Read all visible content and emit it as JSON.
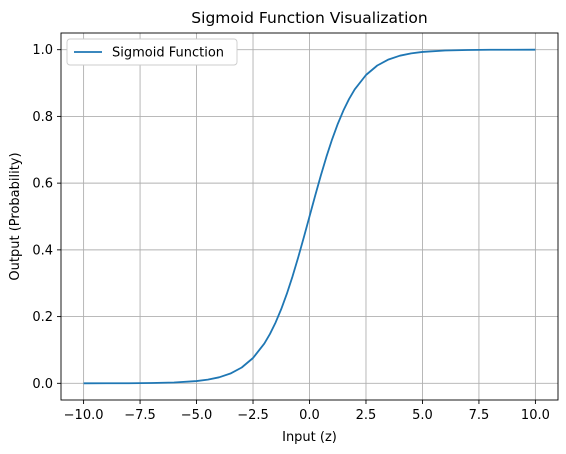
{
  "chart_data": {
    "type": "line",
    "title": "Sigmoid Function Visualization",
    "xlabel": "Input (z)",
    "ylabel": "Output (Probability)",
    "xlim": [
      -11.0,
      11.0
    ],
    "ylim": [
      -0.05,
      1.05
    ],
    "xticks": [
      -10.0,
      -7.5,
      -5.0,
      -2.5,
      0.0,
      2.5,
      5.0,
      7.5,
      10.0
    ],
    "xtick_labels": [
      "−10.0",
      "−7.5",
      "−5.0",
      "−2.5",
      "0.0",
      "2.5",
      "5.0",
      "7.5",
      "10.0"
    ],
    "yticks": [
      0.0,
      0.2,
      0.4,
      0.6,
      0.8,
      1.0
    ],
    "ytick_labels": [
      "0.0",
      "0.2",
      "0.4",
      "0.6",
      "0.8",
      "1.0"
    ],
    "grid": true,
    "legend_position": "top-left",
    "series": [
      {
        "name": "Sigmoid Function",
        "color": "#1f77b4",
        "x": [
          -10,
          -9,
          -8,
          -7,
          -6,
          -5,
          -4.5,
          -4,
          -3.5,
          -3,
          -2.5,
          -2,
          -1.75,
          -1.5,
          -1.25,
          -1,
          -0.75,
          -0.5,
          -0.25,
          0,
          0.25,
          0.5,
          0.75,
          1,
          1.25,
          1.5,
          1.75,
          2,
          2.5,
          3,
          3.5,
          4,
          4.5,
          5,
          6,
          7,
          8,
          9,
          10
        ],
        "y": [
          0.0,
          0.0001,
          0.0003,
          0.0009,
          0.0025,
          0.0067,
          0.011,
          0.018,
          0.0293,
          0.0474,
          0.0759,
          0.1192,
          0.148,
          0.1824,
          0.2227,
          0.2689,
          0.3208,
          0.3775,
          0.4378,
          0.5,
          0.5622,
          0.6225,
          0.6792,
          0.7311,
          0.7773,
          0.8176,
          0.852,
          0.8808,
          0.9241,
          0.9526,
          0.9707,
          0.982,
          0.989,
          0.9933,
          0.9975,
          0.9991,
          0.9997,
          0.9999,
          1.0
        ]
      }
    ]
  }
}
